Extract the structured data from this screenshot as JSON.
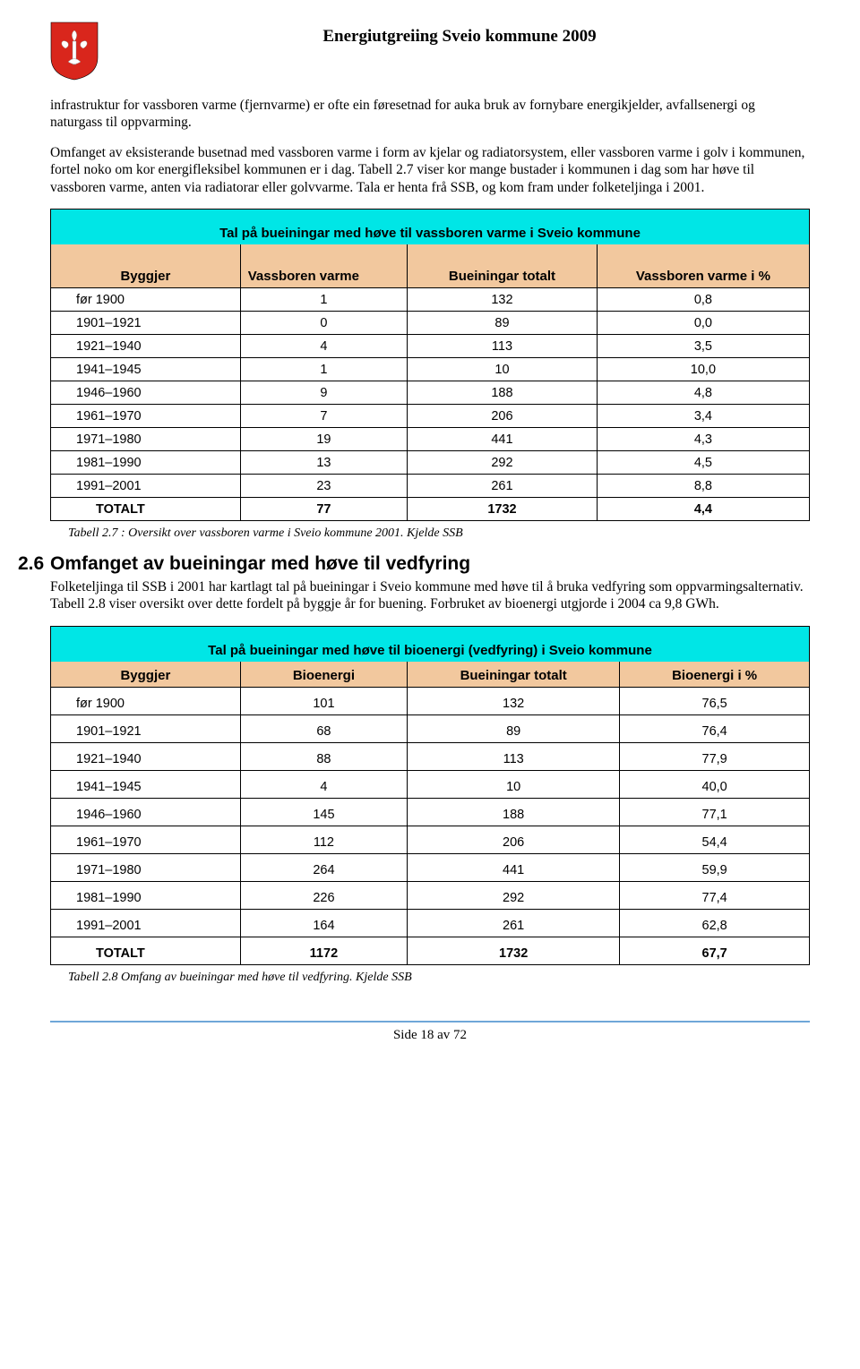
{
  "header": {
    "title": "Energiutgreiing Sveio kommune 2009"
  },
  "para1": "infrastruktur for vassboren varme (fjernvarme) er ofte ein føresetnad for auka bruk av fornybare energikjelder, avfallsenergi og naturgass til oppvarming.",
  "para2": "Omfanget av eksisterande busetnad med vassboren varme i form av kjelar og radiatorsystem, eller vassboren varme i golv i kommunen, fortel noko om kor energifleksibel kommunen er i dag. Tabell 2.7 viser kor mange bustader i kommunen i dag som har høve til vassboren varme, anten via radiatorar eller golvvarme. Tala er henta frå SSB, og kom fram under folketeljinga i 2001.",
  "table1": {
    "title": "Tal på bueiningar med høve til vassboren varme i Sveio kommune",
    "headers": [
      "Byggjer",
      "Vassboren varme",
      "Bueiningar totalt",
      "Vassboren varme i %"
    ],
    "rows": [
      [
        "før 1900",
        "1",
        "132",
        "0,8"
      ],
      [
        "1901–1921",
        "0",
        "89",
        "0,0"
      ],
      [
        "1921–1940",
        "4",
        "113",
        "3,5"
      ],
      [
        "1941–1945",
        "1",
        "10",
        "10,0"
      ],
      [
        "1946–1960",
        "9",
        "188",
        "4,8"
      ],
      [
        "1961–1970",
        "7",
        "206",
        "3,4"
      ],
      [
        "1971–1980",
        "19",
        "441",
        "4,3"
      ],
      [
        "1981–1990",
        "13",
        "292",
        "4,5"
      ],
      [
        "1991–2001",
        "23",
        "261",
        "8,8"
      ]
    ],
    "total": [
      "TOTALT",
      "77",
      "1732",
      "4,4"
    ],
    "caption": "Tabell 2.7 : Oversikt over vassboren varme i Sveio kommune 2001. Kjelde SSB"
  },
  "section": {
    "num": "2.6",
    "title": "Omfanget av bueiningar med høve til vedfyring",
    "text": "Folketeljinga til SSB i 2001 har kartlagt tal på bueiningar i Sveio kommune med høve til å bruka vedfyring som oppvarmingsalternativ. Tabell 2.8 viser oversikt over dette fordelt på byggje år for buening. Forbruket av bioenergi utgjorde i 2004 ca 9,8 GWh."
  },
  "table2": {
    "title": "Tal på bueiningar med høve til bioenergi (vedfyring) i Sveio kommune",
    "headers": [
      "Byggjer",
      "Bioenergi",
      "Bueiningar totalt",
      "Bioenergi i %"
    ],
    "rows": [
      [
        "før 1900",
        "101",
        "132",
        "76,5"
      ],
      [
        "1901–1921",
        "68",
        "89",
        "76,4"
      ],
      [
        "1921–1940",
        "88",
        "113",
        "77,9"
      ],
      [
        "1941–1945",
        "4",
        "10",
        "40,0"
      ],
      [
        "1946–1960",
        "145",
        "188",
        "77,1"
      ],
      [
        "1961–1970",
        "112",
        "206",
        "54,4"
      ],
      [
        "1971–1980",
        "264",
        "441",
        "59,9"
      ],
      [
        "1981–1990",
        "226",
        "292",
        "77,4"
      ],
      [
        "1991–2001",
        "164",
        "261",
        "62,8"
      ]
    ],
    "total": [
      "TOTALT",
      "1172",
      "1732",
      "67,7"
    ],
    "caption": "Tabell 2.8 Omfang av bueiningar med høve til vedfyring. Kjelde SSB"
  },
  "footer": "Side 18 av 72",
  "colors": {
    "titleRow": "#00e6e6",
    "headerRow": "#f2c89e",
    "footerRule": "#6fa7d8"
  }
}
